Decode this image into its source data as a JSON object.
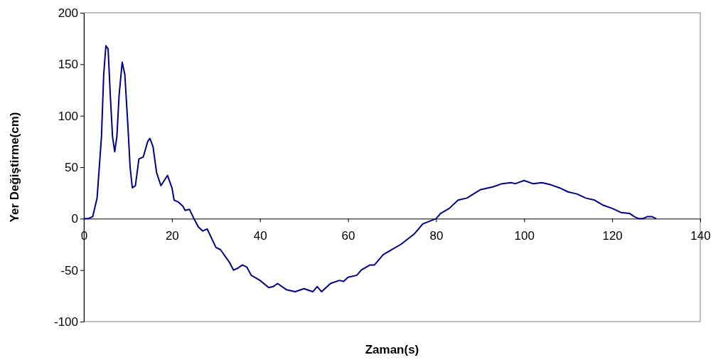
{
  "chart_data": {
    "type": "line",
    "xlabel": "Zaman(s)",
    "ylabel": "Yer Değiştirme(cm)",
    "xlim": [
      0,
      140
    ],
    "ylim": [
      -100,
      200
    ],
    "xticks": [
      0,
      20,
      40,
      60,
      80,
      100,
      120,
      140
    ],
    "yticks": [
      -100,
      -50,
      0,
      50,
      100,
      150,
      200
    ],
    "grid": false,
    "marker": "none",
    "line_style": "solid",
    "x": [
      0,
      1,
      2,
      3,
      4,
      4.5,
      5,
      5.5,
      6,
      6.5,
      7,
      7.5,
      8,
      8.7,
      9.3,
      10,
      10.5,
      11,
      11.7,
      12.5,
      13.5,
      14.5,
      15,
      15.7,
      16.5,
      17.5,
      19,
      20,
      20.5,
      21.5,
      22.5,
      23,
      24,
      25,
      26,
      27,
      28,
      30,
      31,
      33,
      34,
      35,
      36,
      37,
      38,
      40,
      42,
      43,
      44,
      46,
      48,
      50,
      52,
      53,
      54,
      56,
      58,
      59,
      60,
      62,
      63,
      65,
      66,
      68,
      70,
      72,
      75,
      77,
      80,
      81,
      83,
      85,
      87,
      90,
      93,
      95,
      97,
      98,
      100,
      102,
      104,
      106,
      108,
      110,
      112,
      114,
      116,
      118,
      120,
      122,
      124,
      125,
      126,
      127,
      128,
      129,
      130
    ],
    "series": [
      {
        "color": "#000080",
        "values": [
          0,
          0,
          2,
          20,
          80,
          140,
          168,
          165,
          120,
          80,
          65,
          80,
          120,
          152,
          140,
          90,
          50,
          30,
          32,
          58,
          60,
          75,
          78,
          70,
          45,
          32,
          42,
          30,
          18,
          16,
          12,
          8,
          9,
          0,
          -8,
          -12,
          -10,
          -28,
          -30,
          -42,
          -50,
          -48,
          -45,
          -47,
          -55,
          -60,
          -67,
          -66,
          -63,
          -69,
          -71,
          -68,
          -71,
          -66,
          -71,
          -63,
          -60,
          -61,
          -57,
          -55,
          -50,
          -45,
          -45,
          -35,
          -30,
          -25,
          -15,
          -5,
          0,
          5,
          10,
          18,
          20,
          28,
          31,
          34,
          35,
          34,
          37,
          34,
          35,
          33,
          30,
          26,
          24,
          20,
          18,
          13,
          10,
          6,
          5,
          2,
          0,
          0,
          2,
          2,
          0
        ]
      }
    ]
  }
}
